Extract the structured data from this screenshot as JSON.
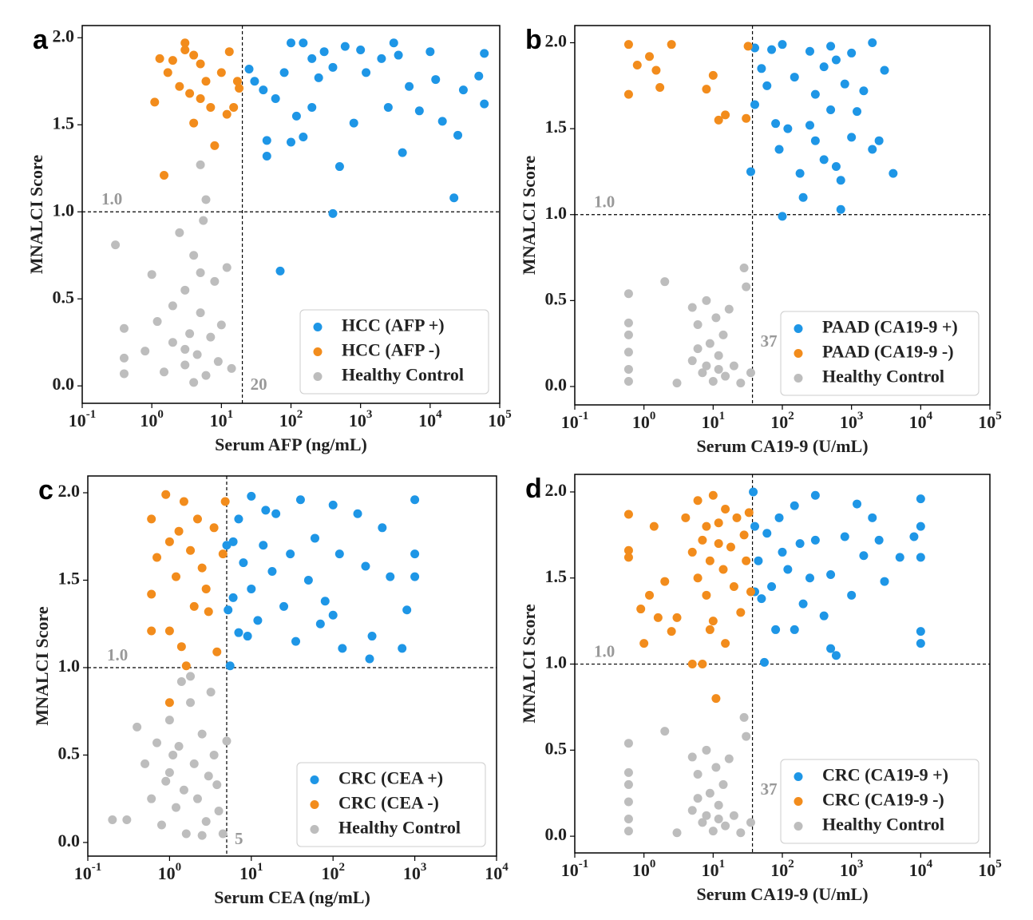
{
  "chart_data": [
    {
      "type": "scatter",
      "panel": "a",
      "xlabel": "Serum AFP (ng/mL)",
      "ylabel": "MNALCI  Score",
      "xscale": "log",
      "xlim": [
        0.1,
        100000
      ],
      "xticks": [
        {
          "value": 0.1,
          "label": "10^-1"
        },
        {
          "value": 1,
          "label": "10^0"
        },
        {
          "value": 10,
          "label": "10^1"
        },
        {
          "value": 100,
          "label": "10^2"
        },
        {
          "value": 1000,
          "label": "10^3"
        },
        {
          "value": 10000,
          "label": "10^4"
        },
        {
          "value": 100000,
          "label": "10^5"
        }
      ],
      "ylim": [
        -0.1,
        2.07
      ],
      "yticks": [
        {
          "value": 0,
          "label": "0.0"
        },
        {
          "value": 0.5,
          "label": "0.5"
        },
        {
          "value": 1,
          "label": "1.0"
        },
        {
          "value": 1.5,
          "label": "1.5"
        },
        {
          "value": 2,
          "label": "2.0"
        }
      ],
      "vline": 20,
      "hline": {
        "value": 1,
        "label": "1.0"
      },
      "legend": "lower right",
      "series": [
        {
          "name": "HCC (AFP +)",
          "color": "#1e96e6",
          "x": [
            25,
            30,
            40,
            45,
            45,
            60,
            80,
            100,
            100,
            120,
            150,
            150,
            200,
            250,
            300,
            400,
            500,
            400,
            70,
            600,
            800,
            1000,
            1200,
            2000,
            3000,
            3500,
            4000,
            5000,
            7000,
            10000,
            12000,
            15000,
            22000,
            25000,
            30000,
            50000,
            60000,
            60000,
            200,
            2500
          ],
          "values": [
            1.82,
            1.75,
            1.7,
            1.41,
            1.32,
            1.65,
            1.8,
            1.97,
            1.4,
            1.55,
            1.97,
            1.43,
            1.88,
            1.77,
            1.92,
            1.83,
            1.26,
            0.99,
            0.66,
            1.95,
            1.51,
            1.93,
            1.8,
            1.88,
            1.97,
            1.9,
            1.34,
            1.72,
            1.58,
            1.92,
            1.76,
            1.52,
            1.08,
            1.44,
            1.7,
            1.78,
            1.91,
            1.62,
            1.6,
            1.6
          ]
        },
        {
          "name": "HCC (AFP -)",
          "color": "#f28c1c",
          "x": [
            1.1,
            1.3,
            1.5,
            1.7,
            2,
            2.5,
            3,
            3.5,
            4,
            4,
            5,
            6,
            7,
            8,
            10,
            12,
            13,
            15,
            17,
            18,
            3,
            5
          ],
          "values": [
            1.63,
            1.88,
            1.21,
            1.8,
            1.87,
            1.72,
            1.97,
            1.68,
            1.51,
            1.9,
            1.85,
            1.75,
            1.6,
            1.38,
            1.8,
            1.56,
            1.92,
            1.6,
            1.75,
            1.71,
            1.93,
            1.65
          ]
        },
        {
          "name": "Healthy Control",
          "color": "#bdbdbd",
          "x": [
            0.3,
            0.4,
            0.4,
            0.4,
            0.8,
            1,
            1.2,
            1.5,
            2,
            2,
            2.5,
            3,
            3,
            3.5,
            4,
            4,
            4.5,
            5,
            5,
            5.5,
            6,
            6,
            7,
            8,
            9,
            10,
            12,
            14,
            3,
            5
          ],
          "values": [
            0.81,
            0.33,
            0.16,
            0.07,
            0.2,
            0.64,
            0.37,
            0.08,
            0.46,
            0.25,
            0.88,
            0.12,
            0.55,
            0.3,
            0.75,
            0.02,
            0.18,
            1.27,
            0.42,
            0.95,
            1.07,
            0.06,
            0.28,
            0.6,
            0.14,
            0.35,
            0.68,
            0.1,
            0.21,
            0.65
          ]
        }
      ]
    },
    {
      "type": "scatter",
      "panel": "b",
      "xlabel": "Serum CA19-9 (U/mL)",
      "ylabel": "MNALCI  Score",
      "xscale": "log",
      "xlim": [
        0.1,
        100000
      ],
      "xticks": [
        {
          "value": 0.1,
          "label": "10^-1"
        },
        {
          "value": 1,
          "label": "10^0"
        },
        {
          "value": 10,
          "label": "10^1"
        },
        {
          "value": 100,
          "label": "10^2"
        },
        {
          "value": 1000,
          "label": "10^3"
        },
        {
          "value": 10000,
          "label": "10^4"
        },
        {
          "value": 100000,
          "label": "10^5"
        }
      ],
      "ylim": [
        -0.107,
        2.1
      ],
      "yticks": [
        {
          "value": 0,
          "label": "0.0"
        },
        {
          "value": 0.5,
          "label": "0.5"
        },
        {
          "value": 1,
          "label": "1.0"
        },
        {
          "value": 1.5,
          "label": "1.5"
        },
        {
          "value": 2,
          "label": "2.0"
        }
      ],
      "vline": 37,
      "hline": {
        "value": 1,
        "label": "1.0"
      },
      "legend": "lower right",
      "series": [
        {
          "name": "PAAD (CA19-9 +)",
          "color": "#1e96e6",
          "x": [
            35,
            40,
            40,
            50,
            60,
            70,
            80,
            90,
            100,
            100,
            120,
            150,
            180,
            200,
            250,
            300,
            300,
            400,
            400,
            500,
            500,
            600,
            700,
            700,
            800,
            1000,
            1000,
            1200,
            1500,
            2000,
            2000,
            2500,
            3000,
            4000,
            250,
            600
          ],
          "values": [
            1.25,
            1.97,
            1.64,
            1.85,
            1.75,
            1.96,
            1.53,
            1.38,
            0.99,
            1.99,
            1.5,
            1.8,
            1.24,
            1.1,
            1.95,
            1.7,
            1.43,
            1.86,
            1.32,
            1.98,
            1.61,
            1.9,
            1.2,
            1.03,
            1.76,
            1.94,
            1.45,
            1.6,
            1.72,
            2.0,
            1.38,
            1.43,
            1.84,
            1.24,
            1.52,
            1.28
          ]
        },
        {
          "name": "PAAD (CA19-9 -)",
          "color": "#f28c1c",
          "x": [
            0.6,
            0.6,
            0.8,
            1.2,
            1.5,
            1.7,
            2.5,
            8,
            10,
            12,
            15,
            30,
            32
          ],
          "values": [
            1.99,
            1.7,
            1.87,
            1.92,
            1.84,
            1.74,
            1.99,
            1.73,
            1.81,
            1.55,
            1.58,
            1.56,
            1.98
          ]
        },
        {
          "name": "Healthy Control",
          "color": "#bdbdbd",
          "x": [
            0.6,
            0.6,
            0.6,
            0.6,
            0.6,
            0.6,
            2,
            3,
            5,
            5,
            6,
            7,
            8,
            9,
            10,
            11,
            12,
            14,
            15,
            17,
            20,
            25,
            28,
            30,
            35,
            8,
            12,
            6
          ],
          "values": [
            0.54,
            0.37,
            0.3,
            0.2,
            0.1,
            0.03,
            0.61,
            0.02,
            0.46,
            0.15,
            0.36,
            0.08,
            0.5,
            0.25,
            0.03,
            0.4,
            0.18,
            0.3,
            0.06,
            0.45,
            0.12,
            0.02,
            0.69,
            0.58,
            0.08,
            0.12,
            0.1,
            0.22
          ]
        }
      ]
    },
    {
      "type": "scatter",
      "panel": "c",
      "xlabel": "Serum CEA (ng/mL)",
      "ylabel": "MNALCI  Score",
      "xscale": "log",
      "xlim": [
        0.1,
        10000
      ],
      "xticks": [
        {
          "value": 0.1,
          "label": "10^-1"
        },
        {
          "value": 1,
          "label": "10^0"
        },
        {
          "value": 10,
          "label": "10^1"
        },
        {
          "value": 100,
          "label": "10^2"
        },
        {
          "value": 1000,
          "label": "10^3"
        },
        {
          "value": 10000,
          "label": "10^4"
        }
      ],
      "ylim": [
        -0.078,
        2.096
      ],
      "yticks": [
        {
          "value": 0,
          "label": "0.0"
        },
        {
          "value": 0.5,
          "label": "0.5"
        },
        {
          "value": 1,
          "label": "1.0"
        },
        {
          "value": 1.5,
          "label": "1.5"
        },
        {
          "value": 2,
          "label": "2.0"
        }
      ],
      "vline": 5,
      "hline": {
        "value": 1,
        "label": "1.0"
      },
      "legend": "lower right",
      "series": [
        {
          "name": "CRC (CEA +)",
          "color": "#1e96e6",
          "x": [
            5.2,
            5.5,
            6,
            6,
            7,
            7,
            8,
            9,
            10,
            10,
            12,
            14,
            15,
            18,
            20,
            25,
            30,
            35,
            40,
            50,
            60,
            70,
            80,
            100,
            100,
            120,
            130,
            200,
            250,
            280,
            300,
            400,
            500,
            700,
            800,
            1000,
            1000,
            1000,
            5
          ],
          "values": [
            1.33,
            1.01,
            1.72,
            1.4,
            1.85,
            1.2,
            1.6,
            1.18,
            1.98,
            1.45,
            1.27,
            1.7,
            1.9,
            1.55,
            1.88,
            1.35,
            1.65,
            1.15,
            1.96,
            1.5,
            1.74,
            1.25,
            1.38,
            1.93,
            1.3,
            1.65,
            1.11,
            1.88,
            1.58,
            1.05,
            1.18,
            1.8,
            1.52,
            1.11,
            1.33,
            1.96,
            1.65,
            1.52,
            1.7
          ]
        },
        {
          "name": "CRC (CEA -)",
          "color": "#f28c1c",
          "x": [
            0.6,
            0.6,
            0.6,
            0.7,
            0.9,
            1,
            1,
            1,
            1.2,
            1.4,
            1.5,
            1.6,
            1.8,
            2,
            2.2,
            2.5,
            3,
            3.5,
            3.8,
            4.5,
            4.8,
            1.3,
            2.8
          ],
          "values": [
            1.85,
            1.42,
            1.21,
            1.63,
            1.99,
            1.72,
            1.21,
            0.8,
            1.52,
            1.12,
            1.95,
            1.01,
            1.67,
            1.35,
            1.85,
            1.57,
            1.32,
            1.8,
            1.09,
            1.65,
            1.95,
            1.78,
            1.45
          ]
        },
        {
          "name": "Healthy Control",
          "color": "#bdbdbd",
          "x": [
            0.2,
            0.3,
            0.4,
            0.5,
            0.6,
            0.7,
            0.8,
            0.9,
            1,
            1,
            1.2,
            1.3,
            1.4,
            1.5,
            1.6,
            1.8,
            2,
            2.2,
            2.5,
            2.8,
            3,
            3.2,
            3.5,
            4,
            4.5,
            5,
            1.8,
            2.5,
            1.1,
            3.8
          ],
          "values": [
            0.13,
            0.13,
            0.66,
            0.45,
            0.25,
            0.57,
            0.1,
            0.35,
            0.7,
            0.4,
            0.2,
            0.55,
            0.92,
            0.3,
            0.05,
            0.8,
            0.45,
            0.25,
            0.62,
            0.12,
            0.38,
            0.86,
            0.5,
            0.18,
            0.05,
            0.58,
            0.95,
            0.04,
            0.5,
            0.33
          ]
        }
      ]
    },
    {
      "type": "scatter",
      "panel": "d",
      "xlabel": "Serum CA19-9 (U/mL)",
      "ylabel": "MNALCI  Score",
      "xscale": "log",
      "xlim": [
        0.1,
        100000
      ],
      "xticks": [
        {
          "value": 0.1,
          "label": "10^-1"
        },
        {
          "value": 1,
          "label": "10^0"
        },
        {
          "value": 10,
          "label": "10^1"
        },
        {
          "value": 100,
          "label": "10^2"
        },
        {
          "value": 1000,
          "label": "10^3"
        },
        {
          "value": 10000,
          "label": "10^4"
        },
        {
          "value": 100000,
          "label": "10^5"
        }
      ],
      "ylim": [
        -0.097,
        2.102
      ],
      "yticks": [
        {
          "value": 0,
          "label": "0.0"
        },
        {
          "value": 0.5,
          "label": "0.5"
        },
        {
          "value": 1,
          "label": "1.0"
        },
        {
          "value": 1.5,
          "label": "1.5"
        },
        {
          "value": 2,
          "label": "2.0"
        }
      ],
      "vline": 37,
      "hline": {
        "value": 1,
        "label": "1.0"
      },
      "legend": "lower right",
      "series": [
        {
          "name": "CRC (CA19-9 +)",
          "color": "#1e96e6",
          "x": [
            38,
            40,
            45,
            50,
            55,
            60,
            70,
            80,
            90,
            100,
            120,
            150,
            180,
            200,
            250,
            300,
            300,
            400,
            500,
            500,
            600,
            800,
            1000,
            1200,
            1500,
            2000,
            2500,
            3000,
            5000,
            8000,
            10000,
            10000,
            10000,
            10000,
            10000,
            150,
            40
          ],
          "values": [
            2.0,
            1.8,
            1.6,
            1.38,
            1.01,
            1.76,
            1.45,
            1.2,
            1.85,
            1.65,
            1.55,
            1.92,
            1.7,
            1.35,
            1.5,
            1.98,
            1.72,
            1.28,
            1.52,
            1.09,
            1.05,
            1.74,
            1.4,
            1.93,
            1.63,
            1.85,
            1.72,
            1.48,
            1.62,
            1.74,
            1.96,
            1.8,
            1.62,
            1.19,
            1.12,
            1.2,
            1.42
          ]
        },
        {
          "name": "CRC (CA19-9 -)",
          "color": "#f28c1c",
          "x": [
            0.6,
            0.6,
            0.6,
            0.9,
            1,
            1.2,
            1.4,
            1.6,
            2,
            2.5,
            3,
            4,
            5,
            5,
            6,
            6,
            7,
            7,
            8,
            8,
            9,
            10,
            10,
            11,
            12,
            14,
            15,
            15,
            18,
            20,
            22,
            25,
            28,
            30,
            33,
            35,
            9,
            12
          ],
          "values": [
            1.87,
            1.66,
            1.62,
            1.32,
            1.12,
            1.4,
            1.8,
            1.27,
            1.48,
            1.19,
            1.27,
            1.85,
            1.65,
            1.0,
            1.95,
            1.5,
            1.72,
            1.0,
            1.8,
            1.4,
            1.6,
            1.98,
            1.25,
            0.8,
            1.7,
            1.55,
            1.9,
            1.12,
            1.68,
            1.45,
            1.85,
            1.3,
            1.75,
            1.6,
            1.88,
            1.42,
            1.2,
            1.82
          ]
        },
        {
          "name": "Healthy Control",
          "color": "#bdbdbd",
          "x": [
            0.6,
            0.6,
            0.6,
            0.6,
            0.6,
            0.6,
            2,
            3,
            5,
            5,
            6,
            7,
            8,
            9,
            10,
            11,
            12,
            14,
            15,
            17,
            20,
            25,
            28,
            30,
            35,
            8,
            12,
            6
          ],
          "values": [
            0.54,
            0.37,
            0.3,
            0.2,
            0.1,
            0.03,
            0.61,
            0.02,
            0.46,
            0.15,
            0.36,
            0.08,
            0.5,
            0.25,
            0.03,
            0.4,
            0.18,
            0.3,
            0.06,
            0.45,
            0.12,
            0.02,
            0.69,
            0.58,
            0.08,
            0.12,
            0.1,
            0.22
          ]
        }
      ]
    }
  ]
}
